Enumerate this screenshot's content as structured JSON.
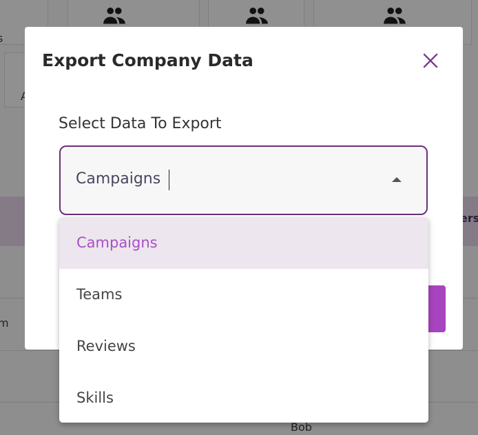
{
  "background": {
    "fragments": {
      "left_top": "s",
      "left_mid": "A",
      "left_row": "m",
      "right_header": "ers",
      "bottom_name": "Bob"
    }
  },
  "modal": {
    "title": "Export Company Data",
    "close_icon": "close-icon",
    "field_label": "Select Data To Export",
    "select_value": "Campaigns",
    "options": [
      {
        "label": "Campaigns",
        "selected": true
      },
      {
        "label": "Teams",
        "selected": false
      },
      {
        "label": "Reviews",
        "selected": false
      },
      {
        "label": "Skills",
        "selected": false
      }
    ]
  },
  "colors": {
    "accent": "#a844bf",
    "border": "#6b2f78",
    "selected_bg": "#ede6ee",
    "selected_text": "#a94fc7"
  }
}
